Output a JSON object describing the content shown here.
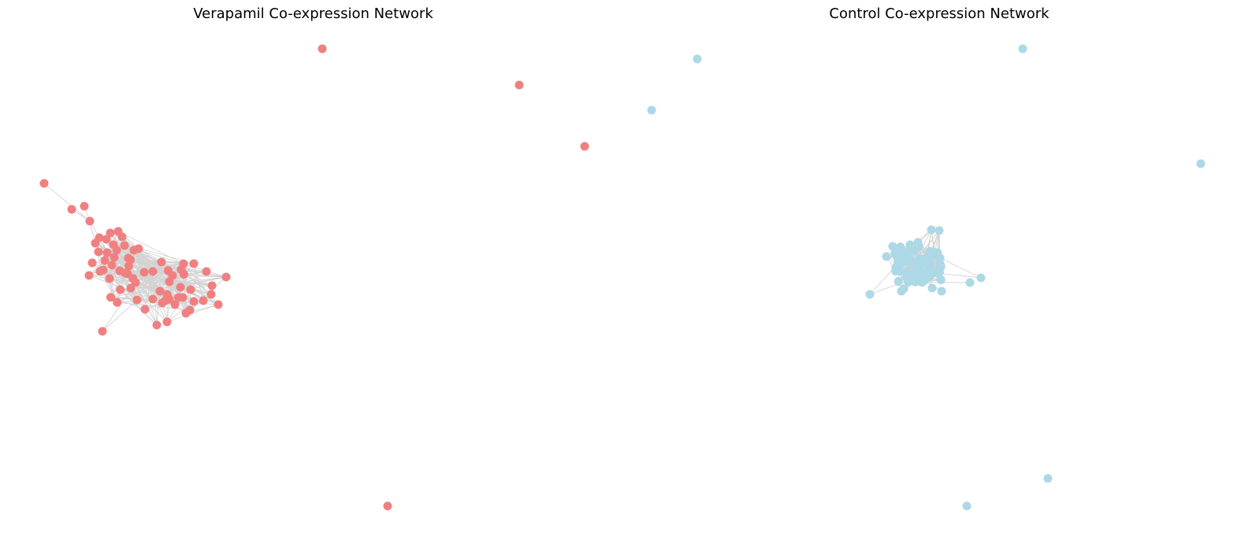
{
  "figure": {
    "panels": [
      {
        "title": "Verapamil Co-expression Network",
        "node_color": "#F08080",
        "edge_color": "#D3D3D3"
      },
      {
        "title": "Control Co-expression Network",
        "node_color": "#ADD8E6",
        "edge_color": "#D3D3D3"
      }
    ]
  }
}
